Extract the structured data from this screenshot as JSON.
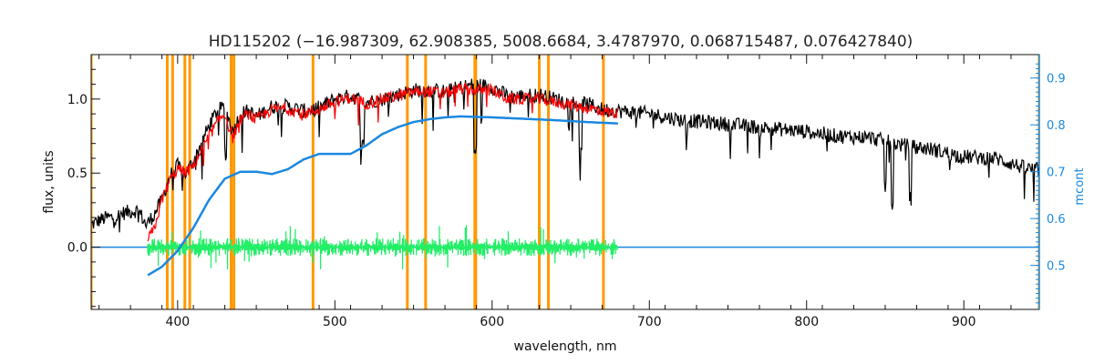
{
  "chart_data": {
    "type": "line",
    "title": "HD115202    (−16.987309, 62.908385, 5008.6684, 3.4787970, 0.068715487, 0.076427840)",
    "xlabel": "wavelength, nm",
    "ylabel": "flux, units",
    "y2label": "mcont",
    "xlim": [
      345,
      948
    ],
    "ylim": [
      -0.42,
      1.3
    ],
    "y2lim": [
      0.406,
      0.95
    ],
    "xticks": [
      400,
      500,
      600,
      700,
      800,
      900
    ],
    "yticks": [
      0.0,
      0.5,
      1.0
    ],
    "y2ticks": [
      0.5,
      0.6,
      0.7,
      0.8,
      0.9
    ],
    "xtick_labels": [
      "400",
      "500",
      "600",
      "700",
      "800",
      "900"
    ],
    "ytick_labels": [
      "0.0",
      "0.5",
      "1.0"
    ],
    "y2tick_labels": [
      "0.5",
      "0.6",
      "0.7",
      "0.8",
      "0.9"
    ],
    "grid": false,
    "colors": {
      "observed": "#000000",
      "model": "#ff0000",
      "residual": "#22ee66",
      "continuum": "#1a88e0",
      "lines": "#ff9900"
    },
    "series": [
      {
        "key": "observed",
        "axis": "left",
        "x": [
          345,
          350,
          355,
          360,
          365,
          370,
          375,
          380,
          385,
          390,
          395,
          400,
          405,
          410,
          415,
          420,
          425,
          430,
          435,
          440,
          445,
          450,
          460,
          470,
          480,
          490,
          500,
          510,
          520,
          530,
          540,
          550,
          560,
          570,
          580,
          590,
          600,
          610,
          620,
          630,
          640,
          650,
          660,
          670,
          680,
          700,
          720,
          740,
          760,
          780,
          800,
          820,
          840,
          860,
          880,
          900,
          920,
          940,
          948
        ],
        "values": [
          0.15,
          0.18,
          0.2,
          0.2,
          0.23,
          0.24,
          0.25,
          0.15,
          0.22,
          0.32,
          0.48,
          0.55,
          0.5,
          0.58,
          0.7,
          0.82,
          0.92,
          0.95,
          0.78,
          0.9,
          0.92,
          0.88,
          0.95,
          0.95,
          0.92,
          0.94,
          1.0,
          1.02,
          0.98,
          1.0,
          1.03,
          1.06,
          1.06,
          1.05,
          1.08,
          1.1,
          1.08,
          1.02,
          1.02,
          1.03,
          1.0,
          0.98,
          0.97,
          0.93,
          0.92,
          0.9,
          0.86,
          0.84,
          0.82,
          0.8,
          0.78,
          0.75,
          0.74,
          0.69,
          0.66,
          0.61,
          0.6,
          0.53,
          0.52
        ]
      },
      {
        "key": "model",
        "axis": "left",
        "x": [
          381,
          385,
          390,
          395,
          400,
          405,
          410,
          415,
          420,
          425,
          430,
          435,
          440,
          445,
          450,
          460,
          470,
          480,
          490,
          500,
          510,
          520,
          530,
          540,
          550,
          560,
          570,
          580,
          590,
          600,
          610,
          620,
          630,
          640,
          650,
          660,
          670,
          680
        ],
        "values": [
          0.05,
          0.12,
          0.32,
          0.45,
          0.53,
          0.5,
          0.55,
          0.65,
          0.75,
          0.84,
          0.9,
          0.74,
          0.86,
          0.9,
          0.86,
          0.93,
          0.94,
          0.9,
          0.93,
          0.98,
          1.01,
          0.97,
          1.0,
          1.02,
          1.05,
          1.05,
          1.04,
          1.07,
          1.06,
          1.06,
          1.0,
          1.0,
          1.0,
          0.98,
          0.96,
          0.94,
          0.92,
          0.9
        ]
      },
      {
        "key": "continuum",
        "axis": "right",
        "x": [
          381,
          390,
          400,
          410,
          420,
          430,
          440,
          450,
          460,
          470,
          480,
          490,
          500,
          510,
          520,
          530,
          540,
          550,
          560,
          570,
          580,
          600,
          620,
          640,
          660,
          680
        ],
        "values": [
          0.479,
          0.497,
          0.531,
          0.58,
          0.64,
          0.685,
          0.7,
          0.7,
          0.695,
          0.705,
          0.726,
          0.738,
          0.738,
          0.738,
          0.756,
          0.78,
          0.795,
          0.806,
          0.812,
          0.816,
          0.818,
          0.816,
          0.813,
          0.81,
          0.806,
          0.803
        ]
      },
      {
        "key": "residual",
        "axis": "left",
        "x": [
          381,
          680
        ],
        "values": [
          0.0,
          0.0
        ]
      }
    ],
    "marked_lines": [
      345,
      393.4,
      396.8,
      404.6,
      407.7,
      434.0,
      435.8,
      486.1,
      546.1,
      557.7,
      589.0,
      589.6,
      630.0,
      635.8,
      670.8,
      948
    ]
  }
}
